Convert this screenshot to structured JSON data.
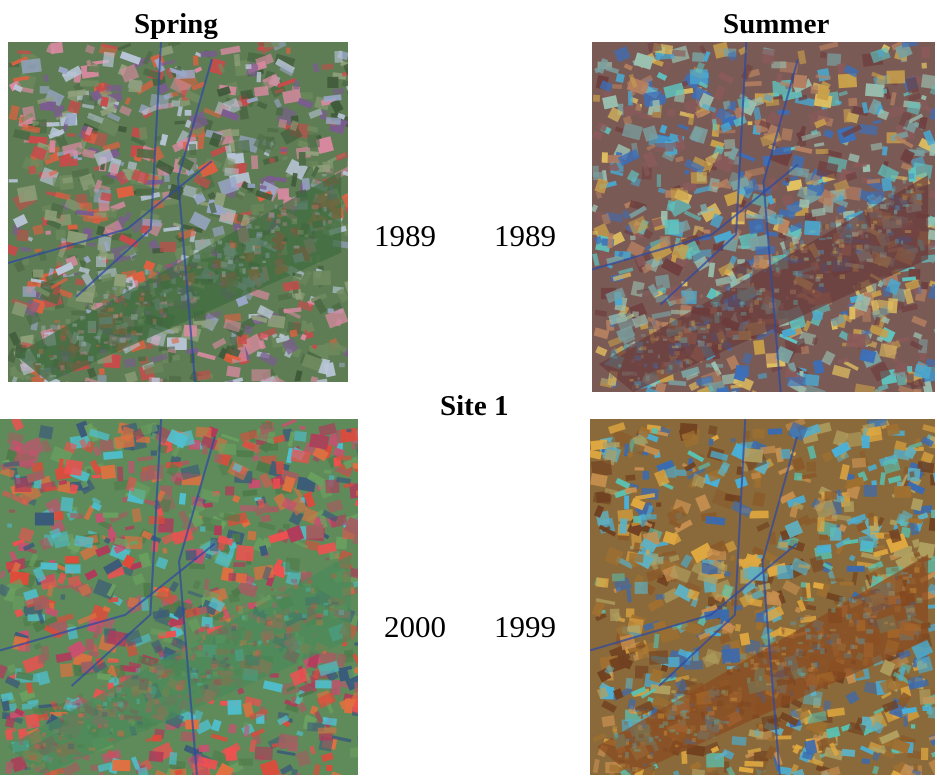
{
  "headings": {
    "spring": "Spring",
    "summer": "Summer",
    "site": "Site 1"
  },
  "years": {
    "spring_top": "1989",
    "summer_top": "1989",
    "spring_bottom": "2000",
    "summer_bottom": "1999"
  },
  "images": [
    {
      "id": "spring-1989",
      "palette": [
        "#6e8a5e",
        "#c94a4a",
        "#9aa7c9",
        "#4d6b45",
        "#d88aa0",
        "#7a5c8f",
        "#e06040",
        "#b9c6d8",
        "#3f5a3a",
        "#8fa07a"
      ],
      "background": "#5f7d55",
      "ridge": "#3f6b3f"
    },
    {
      "id": "summer-1989",
      "palette": [
        "#c9a04a",
        "#5fc4c0",
        "#8a5a5a",
        "#3c6fb8",
        "#e0c060",
        "#7aa0a0",
        "#6e3f3f",
        "#4aa8d0",
        "#b58060",
        "#9ac0b0"
      ],
      "background": "#7a5a55",
      "ridge": "#6a3a3a"
    },
    {
      "id": "spring-2000",
      "palette": [
        "#e04a3a",
        "#4fc0d0",
        "#b03a5a",
        "#4f7a4a",
        "#e07040",
        "#c85070",
        "#3a5a7a",
        "#6aa060",
        "#f05050",
        "#a06060"
      ],
      "background": "#5f8a5a",
      "ridge": "#4a8a5a"
    },
    {
      "id": "summer-1999",
      "palette": [
        "#e0a840",
        "#5ac0b0",
        "#8a5a2a",
        "#3a6ab0",
        "#c89050",
        "#60b0c0",
        "#704020",
        "#b0a060",
        "#4ab0d8",
        "#a07030"
      ],
      "background": "#8a6a3a",
      "ridge": "#8a4a20"
    }
  ]
}
